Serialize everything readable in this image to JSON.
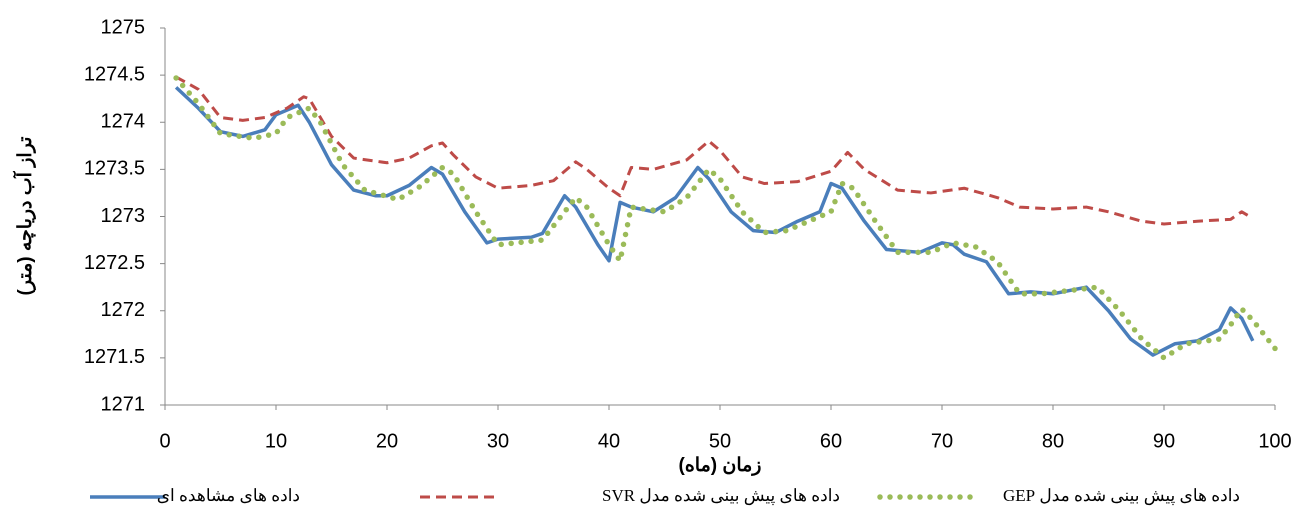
{
  "chart_data": {
    "type": "line",
    "x_label": "زمان (ماه)",
    "y_label": "تراز آب دریاچه (متر)",
    "xlim": [
      0,
      100
    ],
    "xticks": [
      0,
      10,
      20,
      30,
      40,
      50,
      60,
      70,
      80,
      90,
      100
    ],
    "ylim": [
      1271,
      1275
    ],
    "yticks": [
      1271,
      1271.5,
      1272,
      1272.5,
      1273,
      1273.5,
      1274,
      1274.5,
      1275
    ],
    "grid": false,
    "legend": "bottom",
    "series": [
      {
        "name": "داده های مشاهده ای",
        "color": "#4a7ebb",
        "style": "solid",
        "x": [
          1,
          3,
          5,
          7,
          9,
          10,
          12,
          13,
          15,
          17,
          19,
          20,
          22,
          24,
          25,
          27,
          29,
          30,
          33,
          34,
          36,
          37,
          39,
          40,
          41,
          42,
          44,
          46,
          48,
          49,
          51,
          53,
          55,
          57,
          59,
          60,
          61,
          63,
          65,
          68,
          70,
          71,
          72,
          74,
          76,
          78,
          80,
          83,
          85,
          87,
          89,
          91,
          93,
          95,
          96,
          97,
          98
        ],
        "values": [
          1274.37,
          1274.15,
          1273.9,
          1273.85,
          1273.92,
          1274.08,
          1274.18,
          1274.0,
          1273.55,
          1273.28,
          1273.22,
          1273.22,
          1273.33,
          1273.52,
          1273.45,
          1273.05,
          1272.72,
          1272.76,
          1272.78,
          1272.82,
          1273.22,
          1273.1,
          1272.7,
          1272.53,
          1273.15,
          1273.1,
          1273.05,
          1273.2,
          1273.52,
          1273.4,
          1273.05,
          1272.85,
          1272.83,
          1272.95,
          1273.05,
          1273.35,
          1273.3,
          1272.95,
          1272.65,
          1272.62,
          1272.72,
          1272.7,
          1272.6,
          1272.52,
          1272.18,
          1272.2,
          1272.18,
          1272.25,
          1272.0,
          1271.7,
          1271.53,
          1271.65,
          1271.68,
          1271.8,
          1272.03,
          1271.92,
          1271.68
        ]
      },
      {
        "name": "داده های پیش بینی شده مدل SVR",
        "color": "#be4b48",
        "style": "dashed",
        "x": [
          1,
          3,
          5,
          7,
          9,
          11,
          12.5,
          13,
          15,
          17,
          20,
          22,
          24,
          25,
          26,
          28,
          30,
          33,
          35,
          37,
          38,
          40,
          41,
          42,
          44,
          47,
          49,
          50,
          52,
          54,
          57,
          60,
          61.5,
          63,
          66,
          69,
          72,
          75,
          77,
          80,
          83,
          85,
          88,
          90,
          93,
          96,
          97,
          98
        ],
        "values": [
          1274.48,
          1274.35,
          1274.05,
          1274.02,
          1274.05,
          1274.15,
          1274.27,
          1274.25,
          1273.85,
          1273.62,
          1273.57,
          1273.62,
          1273.75,
          1273.78,
          1273.65,
          1273.42,
          1273.3,
          1273.33,
          1273.38,
          1273.58,
          1273.5,
          1273.3,
          1273.22,
          1273.52,
          1273.5,
          1273.6,
          1273.8,
          1273.7,
          1273.42,
          1273.35,
          1273.37,
          1273.48,
          1273.68,
          1273.5,
          1273.28,
          1273.25,
          1273.3,
          1273.2,
          1273.1,
          1273.08,
          1273.1,
          1273.05,
          1272.95,
          1272.92,
          1272.95,
          1272.97,
          1273.05,
          1272.98
        ]
      },
      {
        "name": "داده های پیش بینی شده مدل GEP",
        "color": "#9bbb59",
        "style": "dotted",
        "x": [
          1,
          3,
          5,
          8,
          10,
          11,
          13,
          14,
          16,
          18,
          21,
          23,
          25,
          26,
          28,
          30,
          34,
          35,
          37,
          38,
          40,
          41,
          42,
          45,
          47,
          49,
          50,
          52,
          54,
          56,
          60,
          61,
          62,
          64,
          66,
          69,
          71,
          73,
          75,
          77,
          79,
          84,
          86,
          88,
          90,
          92,
          95,
          96,
          97,
          98,
          100
        ],
        "values": [
          1274.47,
          1274.2,
          1273.88,
          1273.83,
          1273.88,
          1274.05,
          1274.15,
          1274.0,
          1273.55,
          1273.28,
          1273.18,
          1273.32,
          1273.52,
          1273.45,
          1273.05,
          1272.7,
          1272.75,
          1272.9,
          1273.2,
          1273.1,
          1272.7,
          1272.53,
          1273.1,
          1273.05,
          1273.2,
          1273.5,
          1273.4,
          1273.05,
          1272.83,
          1272.85,
          1273.05,
          1273.35,
          1273.3,
          1272.95,
          1272.62,
          1272.62,
          1272.72,
          1272.68,
          1272.52,
          1272.18,
          1272.18,
          1272.25,
          1272.0,
          1271.7,
          1271.5,
          1271.65,
          1271.7,
          1271.85,
          1272.02,
          1271.9,
          1271.6
        ]
      }
    ]
  }
}
